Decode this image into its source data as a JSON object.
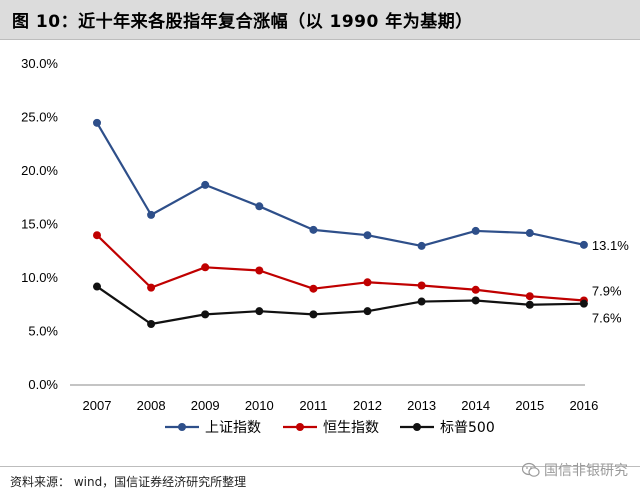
{
  "title": "图 10：近十年来各股指年复合涨幅（以 1990 年为基期）",
  "source": "资料来源： wind，国信证券经济研究所整理",
  "watermark": "国信非银研究",
  "chart_data": {
    "type": "line",
    "title": "",
    "xlabel": "",
    "ylabel": "",
    "x": [
      "2007",
      "2008",
      "2009",
      "2010",
      "2011",
      "2012",
      "2013",
      "2014",
      "2015",
      "2016"
    ],
    "ylim": [
      0,
      30
    ],
    "yticks": [
      "0.0%",
      "5.0%",
      "10.0%",
      "15.0%",
      "20.0%",
      "25.0%",
      "30.0%"
    ],
    "grid": false,
    "legend_position": "bottom",
    "series": [
      {
        "name": "上证指数",
        "color": "#2e4f8a",
        "values": [
          24.5,
          15.9,
          18.7,
          16.7,
          14.5,
          14.0,
          13.0,
          14.4,
          14.2,
          13.1
        ],
        "end_label": "13.1%"
      },
      {
        "name": "恒生指数",
        "color": "#c00000",
        "values": [
          14.0,
          9.1,
          11.0,
          10.7,
          9.0,
          9.6,
          9.3,
          8.9,
          8.3,
          7.9
        ],
        "end_label": "7.9%"
      },
      {
        "name": "标普500",
        "color": "#111111",
        "values": [
          9.2,
          5.7,
          6.6,
          6.9,
          6.6,
          6.9,
          7.8,
          7.9,
          7.5,
          7.6
        ],
        "end_label": "7.6%"
      }
    ]
  }
}
